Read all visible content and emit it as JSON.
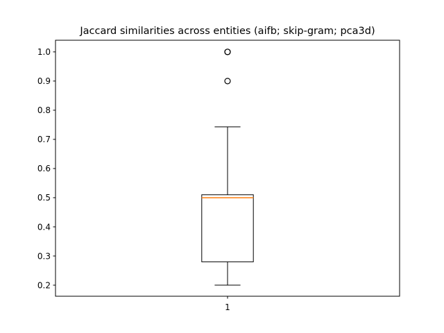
{
  "chart_data": {
    "type": "box",
    "title": "Jaccard similarities across entities (aifb; skip-gram; pca3d)",
    "xlabel": "",
    "ylabel": "",
    "categories": [
      "1"
    ],
    "ylim": [
      0.162,
      1.04
    ],
    "yticks": [
      0.2,
      0.3,
      0.4,
      0.5,
      0.6,
      0.7,
      0.8,
      0.9,
      1.0
    ],
    "ytick_labels": [
      "0.2",
      "0.3",
      "0.4",
      "0.5",
      "0.6",
      "0.7",
      "0.8",
      "0.9",
      "1.0"
    ],
    "grid": false,
    "boxes": [
      {
        "category": "1",
        "whisker_low": 0.2,
        "q1": 0.28,
        "median": 0.5,
        "q3": 0.51,
        "whisker_high": 0.743,
        "outliers": [
          0.9,
          1.0,
          1.0
        ]
      }
    ],
    "colors": {
      "median": "#ff7f0e",
      "box": "#000000",
      "outlier": "#000000"
    }
  }
}
